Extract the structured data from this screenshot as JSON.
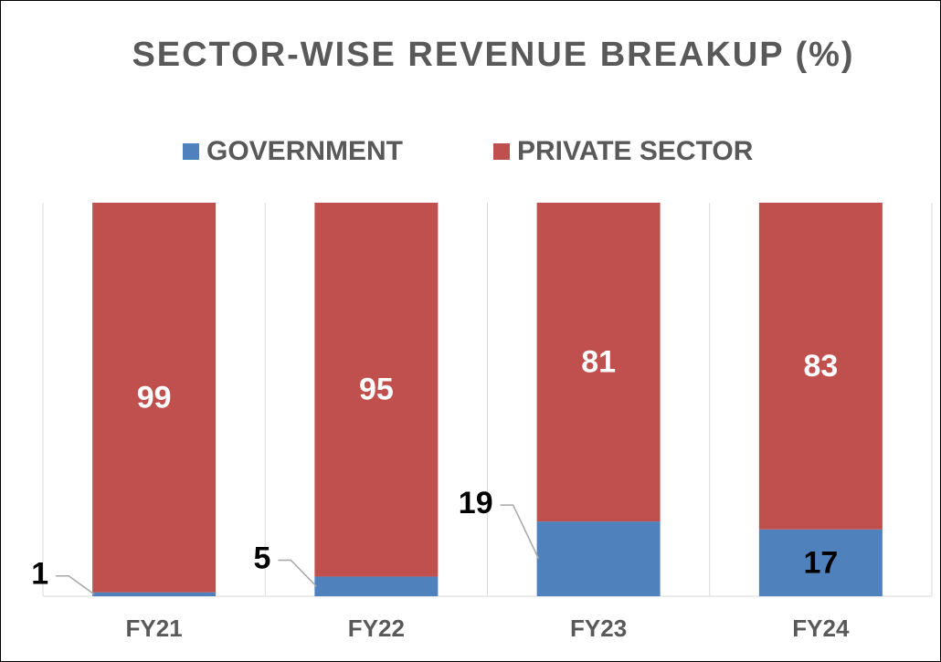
{
  "chart_data": {
    "type": "stacked_bar",
    "title": "SECTOR-WISE REVENUE BREAKUP (%)",
    "categories": [
      "FY21",
      "FY22",
      "FY23",
      "FY24"
    ],
    "series": [
      {
        "name": "GOVERNMENT",
        "color": "#4f81bd",
        "values": [
          1,
          5,
          19,
          17
        ],
        "label_positions": [
          "outside",
          "outside",
          "outside",
          "inside"
        ]
      },
      {
        "name": "PRIVATE SECTOR",
        "color": "#c0504d",
        "values": [
          99,
          95,
          81,
          83
        ],
        "label_positions": [
          "inside",
          "inside",
          "inside",
          "inside"
        ]
      }
    ],
    "ylim": [
      0,
      100
    ],
    "legend": "top"
  }
}
